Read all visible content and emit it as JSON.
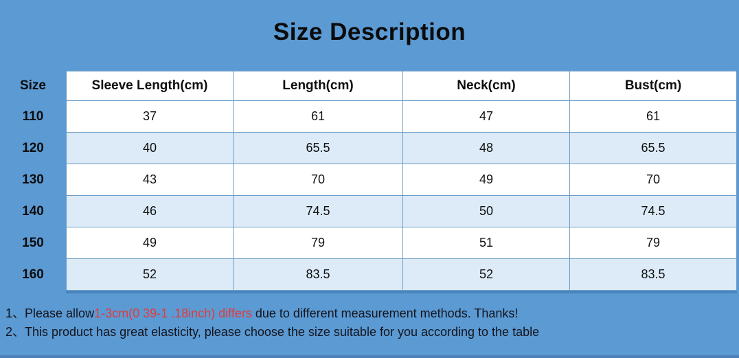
{
  "page": {
    "title": "Size Description",
    "background_color": "#5b9ad3",
    "alt_row_color": "#dcebf7",
    "table_border_color": "#6d9dc5",
    "highlight_text_color": "#e23b3b"
  },
  "table": {
    "size_header": "Size",
    "columns": [
      "Sleeve Length(cm)",
      "Length(cm)",
      "Neck(cm)",
      "Bust(cm)"
    ],
    "rows": [
      {
        "size": "110",
        "values": [
          "37",
          "61",
          "47",
          "61"
        ]
      },
      {
        "size": "120",
        "values": [
          "40",
          "65.5",
          "48",
          "65.5"
        ]
      },
      {
        "size": "130",
        "values": [
          "43",
          "70",
          "49",
          "70"
        ]
      },
      {
        "size": "140",
        "values": [
          "46",
          "74.5",
          "50",
          "74.5"
        ]
      },
      {
        "size": "150",
        "values": [
          "49",
          "79",
          "51",
          "79"
        ]
      },
      {
        "size": "160",
        "values": [
          "52",
          "83.5",
          "52",
          "83.5"
        ]
      }
    ]
  },
  "notes": {
    "note1_prefix": "1、Please allow",
    "note1_highlight": "1-3cm(0 39-1 .18inch) differs",
    "note1_suffix": " due to different measurement methods. Thanks!",
    "note2": "2、This product has great elasticity, please choose the size suitable for you according to the table"
  }
}
